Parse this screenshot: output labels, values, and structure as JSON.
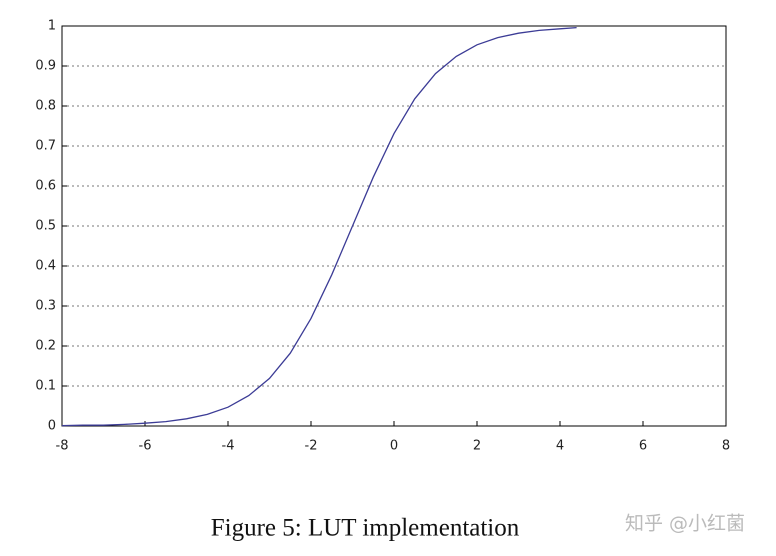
{
  "chart_data": {
    "type": "line",
    "caption": "Figure 5:  LUT implementation",
    "watermark": "知乎 @小红菌",
    "x": [
      -8,
      -7.5,
      -7,
      -6.5,
      -6,
      -5.5,
      -5,
      -4.5,
      -4,
      -3.5,
      -3,
      -2.5,
      -2,
      -1.5,
      -1,
      -0.5,
      0,
      0.5,
      1,
      1.5,
      2,
      2.5,
      3,
      3.5,
      4,
      4.4
    ],
    "series": [
      {
        "color": "#3c3c96",
        "values": [
          0.001,
          0.002,
          0.002,
          0.004,
          0.007,
          0.011,
          0.018,
          0.029,
          0.047,
          0.076,
          0.119,
          0.182,
          0.269,
          0.378,
          0.5,
          0.622,
          0.731,
          0.818,
          0.881,
          0.924,
          0.953,
          0.971,
          0.982,
          0.989,
          0.993,
          0.996
        ]
      }
    ],
    "xlim": [
      -8,
      8
    ],
    "xticks": [
      -8,
      -6,
      -4,
      -2,
      0,
      2,
      4,
      6,
      8
    ],
    "ylim": [
      0,
      1
    ],
    "yticks": [
      0,
      0.1,
      0.2,
      0.3,
      0.4,
      0.5,
      0.6,
      0.7,
      0.8,
      0.9,
      1
    ],
    "grid": true
  }
}
